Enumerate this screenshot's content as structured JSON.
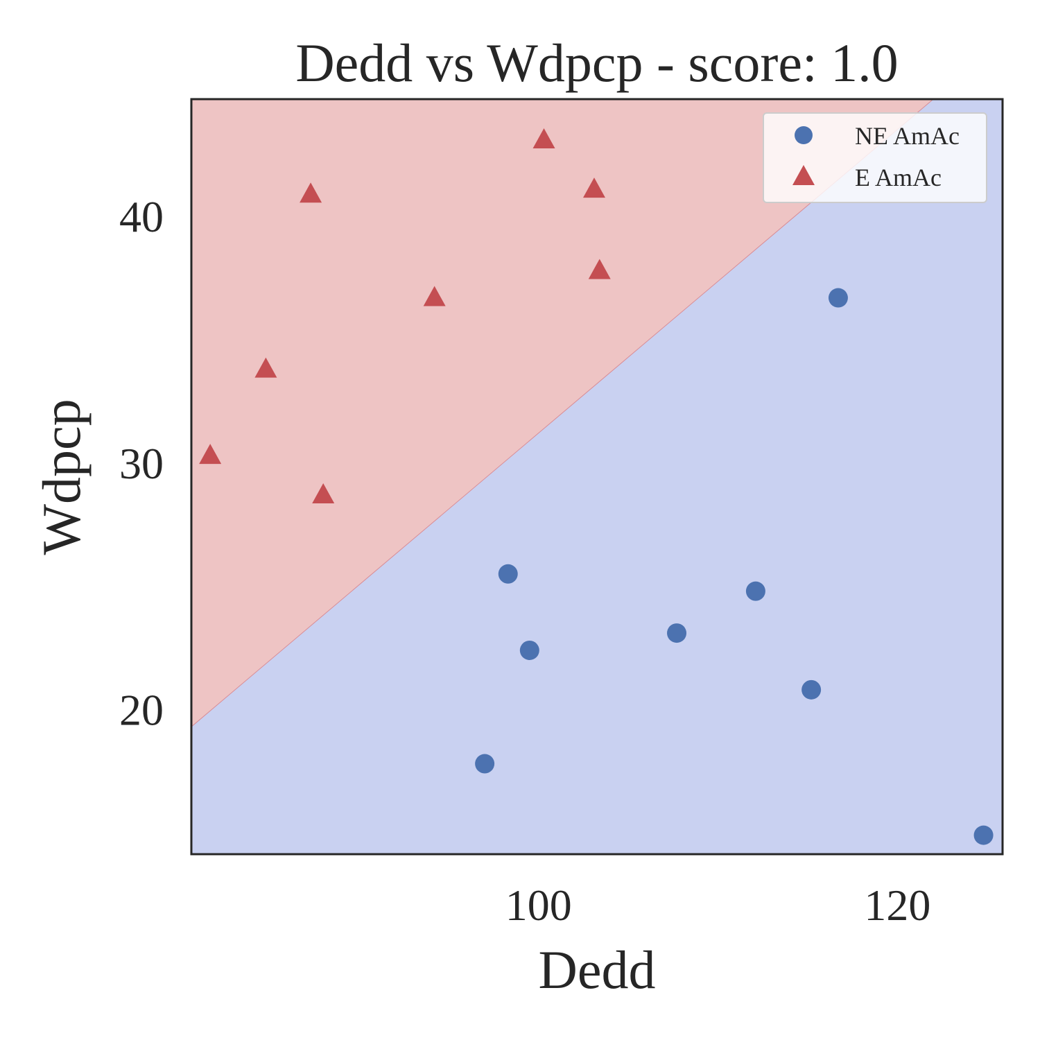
{
  "chart_data": {
    "type": "scatter",
    "title": "Dedd vs Wdpcp - score: 1.0",
    "xlabel": "Dedd",
    "ylabel": "Wdpcp",
    "xlim": [
      80.65,
      125.86
    ],
    "ylim": [
      14.13,
      44.76
    ],
    "x_ticks": [
      100,
      120
    ],
    "y_ticks": [
      20,
      30,
      40
    ],
    "grid": false,
    "legend_position": "top-right",
    "decision_boundary": {
      "x": [
        80.65,
        122.0
      ],
      "y": [
        19.3,
        44.76
      ],
      "upper_region": "E AmAc",
      "lower_region": "NE AmAc"
    },
    "colors": {
      "NE AmAc": "#4c72b0",
      "E AmAc": "#c44e52",
      "region_upper": "#eec4c4",
      "region_lower": "#c9d1f1"
    },
    "series": [
      {
        "name": "NE AmAc",
        "marker": "circle",
        "points": [
          [
            98.3,
            25.5
          ],
          [
            99.5,
            22.4
          ],
          [
            97.0,
            17.8
          ],
          [
            107.7,
            23.1
          ],
          [
            112.1,
            24.8
          ],
          [
            115.2,
            20.8
          ],
          [
            116.7,
            36.7
          ],
          [
            124.8,
            14.9
          ]
        ]
      },
      {
        "name": "E AmAc",
        "marker": "triangle",
        "points": [
          [
            81.7,
            30.3
          ],
          [
            84.8,
            33.8
          ],
          [
            87.3,
            40.9
          ],
          [
            88.0,
            28.7
          ],
          [
            94.2,
            36.7
          ],
          [
            100.3,
            43.1
          ],
          [
            103.1,
            41.1
          ],
          [
            103.4,
            37.8
          ]
        ]
      }
    ]
  }
}
